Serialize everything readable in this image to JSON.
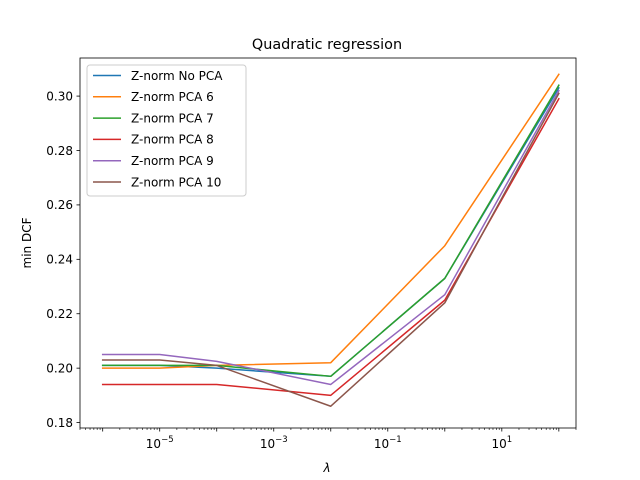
{
  "chart_data": {
    "type": "line",
    "title": "Quadratic regression",
    "xlabel": "λ",
    "ylabel": "min DCF",
    "xscale": "log",
    "xlim": [
      4e-07,
      200
    ],
    "ylim": [
      0.178,
      0.314
    ],
    "x": [
      1e-06,
      1e-05,
      0.0001,
      0.01,
      1,
      100
    ],
    "xticks": [
      {
        "value": 1e-05,
        "base": "10",
        "exp": "−5"
      },
      {
        "value": 0.001,
        "base": "10",
        "exp": "−3"
      },
      {
        "value": 0.1,
        "base": "10",
        "exp": "−1"
      },
      {
        "value": 10,
        "base": "10",
        "exp": "1"
      }
    ],
    "yticks": [
      {
        "value": 0.18,
        "label": "0.18"
      },
      {
        "value": 0.2,
        "label": "0.20"
      },
      {
        "value": 0.22,
        "label": "0.22"
      },
      {
        "value": 0.24,
        "label": "0.24"
      },
      {
        "value": 0.26,
        "label": "0.26"
      },
      {
        "value": 0.28,
        "label": "0.28"
      },
      {
        "value": 0.3,
        "label": "0.30"
      }
    ],
    "grid": false,
    "legend": "top-left",
    "series": [
      {
        "name": "Z-norm No PCA",
        "color": "#1f77b4",
        "values": [
          0.201,
          0.201,
          0.2,
          0.197,
          0.233,
          0.303
        ]
      },
      {
        "name": "Z-norm PCA 6",
        "color": "#ff7f0e",
        "values": [
          0.2,
          0.2,
          0.201,
          0.202,
          0.245,
          0.308
        ]
      },
      {
        "name": "Z-norm PCA 7",
        "color": "#2ca02c",
        "values": [
          0.201,
          0.201,
          0.201,
          0.197,
          0.233,
          0.304
        ]
      },
      {
        "name": "Z-norm PCA 8",
        "color": "#d62728",
        "values": [
          0.194,
          0.194,
          0.194,
          0.19,
          0.225,
          0.299
        ]
      },
      {
        "name": "Z-norm PCA 9",
        "color": "#9467bd",
        "values": [
          0.205,
          0.205,
          0.2025,
          0.194,
          0.227,
          0.302
        ]
      },
      {
        "name": "Z-norm PCA 10",
        "color": "#8c564b",
        "values": [
          0.203,
          0.203,
          0.201,
          0.186,
          0.224,
          0.301
        ]
      }
    ]
  }
}
